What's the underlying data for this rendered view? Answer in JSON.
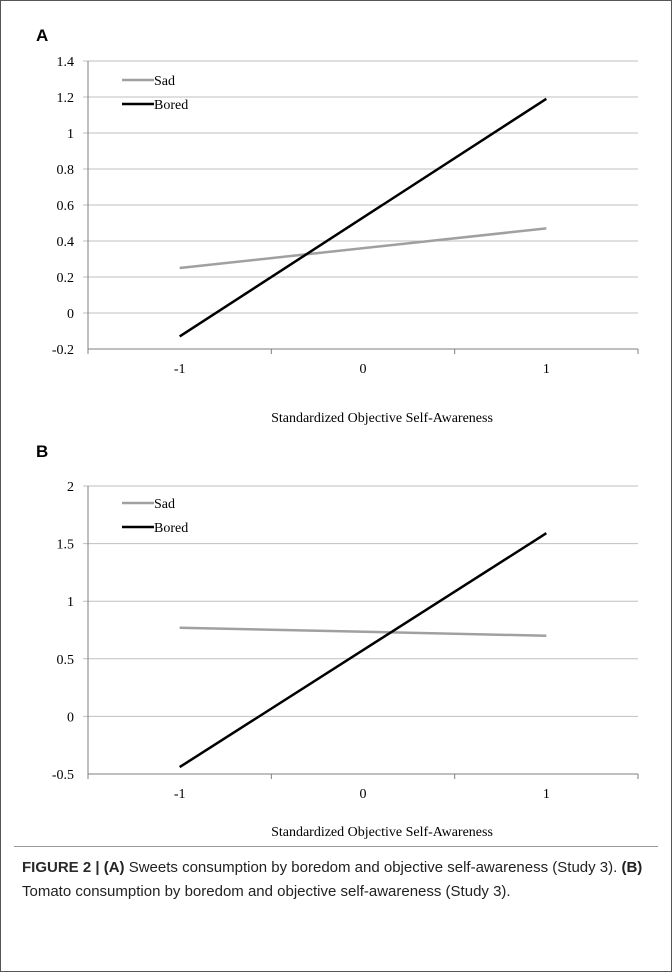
{
  "chart_data": [
    {
      "panel": "A",
      "type": "line",
      "x": [
        -1,
        1
      ],
      "x_ticks": [
        "-1",
        "0",
        "1"
      ],
      "xlabel": "Standardized Objective Self-Awareness",
      "ylabel": "",
      "ylim": [
        -0.2,
        1.4
      ],
      "y_ticks": [
        "-0.2",
        "0",
        "0.2",
        "0.4",
        "0.6",
        "0.8",
        "1",
        "1.2",
        "1.4"
      ],
      "grid": "horizontal",
      "legend": "top-left",
      "series": [
        {
          "name": "Sad",
          "values": [
            0.25,
            0.47
          ],
          "color": "#a0a0a0"
        },
        {
          "name": "Bored",
          "values": [
            -0.13,
            1.19
          ],
          "color": "#000000"
        }
      ]
    },
    {
      "panel": "B",
      "type": "line",
      "x": [
        -1,
        1
      ],
      "x_ticks": [
        "-1",
        "0",
        "1"
      ],
      "xlabel": "Standardized Objective Self-Awareness",
      "ylabel": "",
      "ylim": [
        -0.5,
        2
      ],
      "y_ticks": [
        "-0.5",
        "0",
        "0.5",
        "1",
        "1.5",
        "2"
      ],
      "grid": "horizontal",
      "legend": "top-left",
      "series": [
        {
          "name": "Sad",
          "values": [
            0.77,
            0.7
          ],
          "color": "#a0a0a0"
        },
        {
          "name": "Bored",
          "values": [
            -0.44,
            1.59
          ],
          "color": "#000000"
        }
      ]
    }
  ],
  "caption": {
    "label": "FIGURE 2 |",
    "part_a_label": "(A)",
    "part_a_text": "Sweets consumption by boredom and objective self-awareness (Study 3).",
    "part_b_label": "(B)",
    "part_b_text": "Tomato consumption by boredom and objective self-awareness (Study 3)."
  },
  "colors": {
    "grid": "#bfbfbf",
    "axis": "#7f7f7f",
    "sad": "#a0a0a0",
    "bored": "#000000"
  }
}
